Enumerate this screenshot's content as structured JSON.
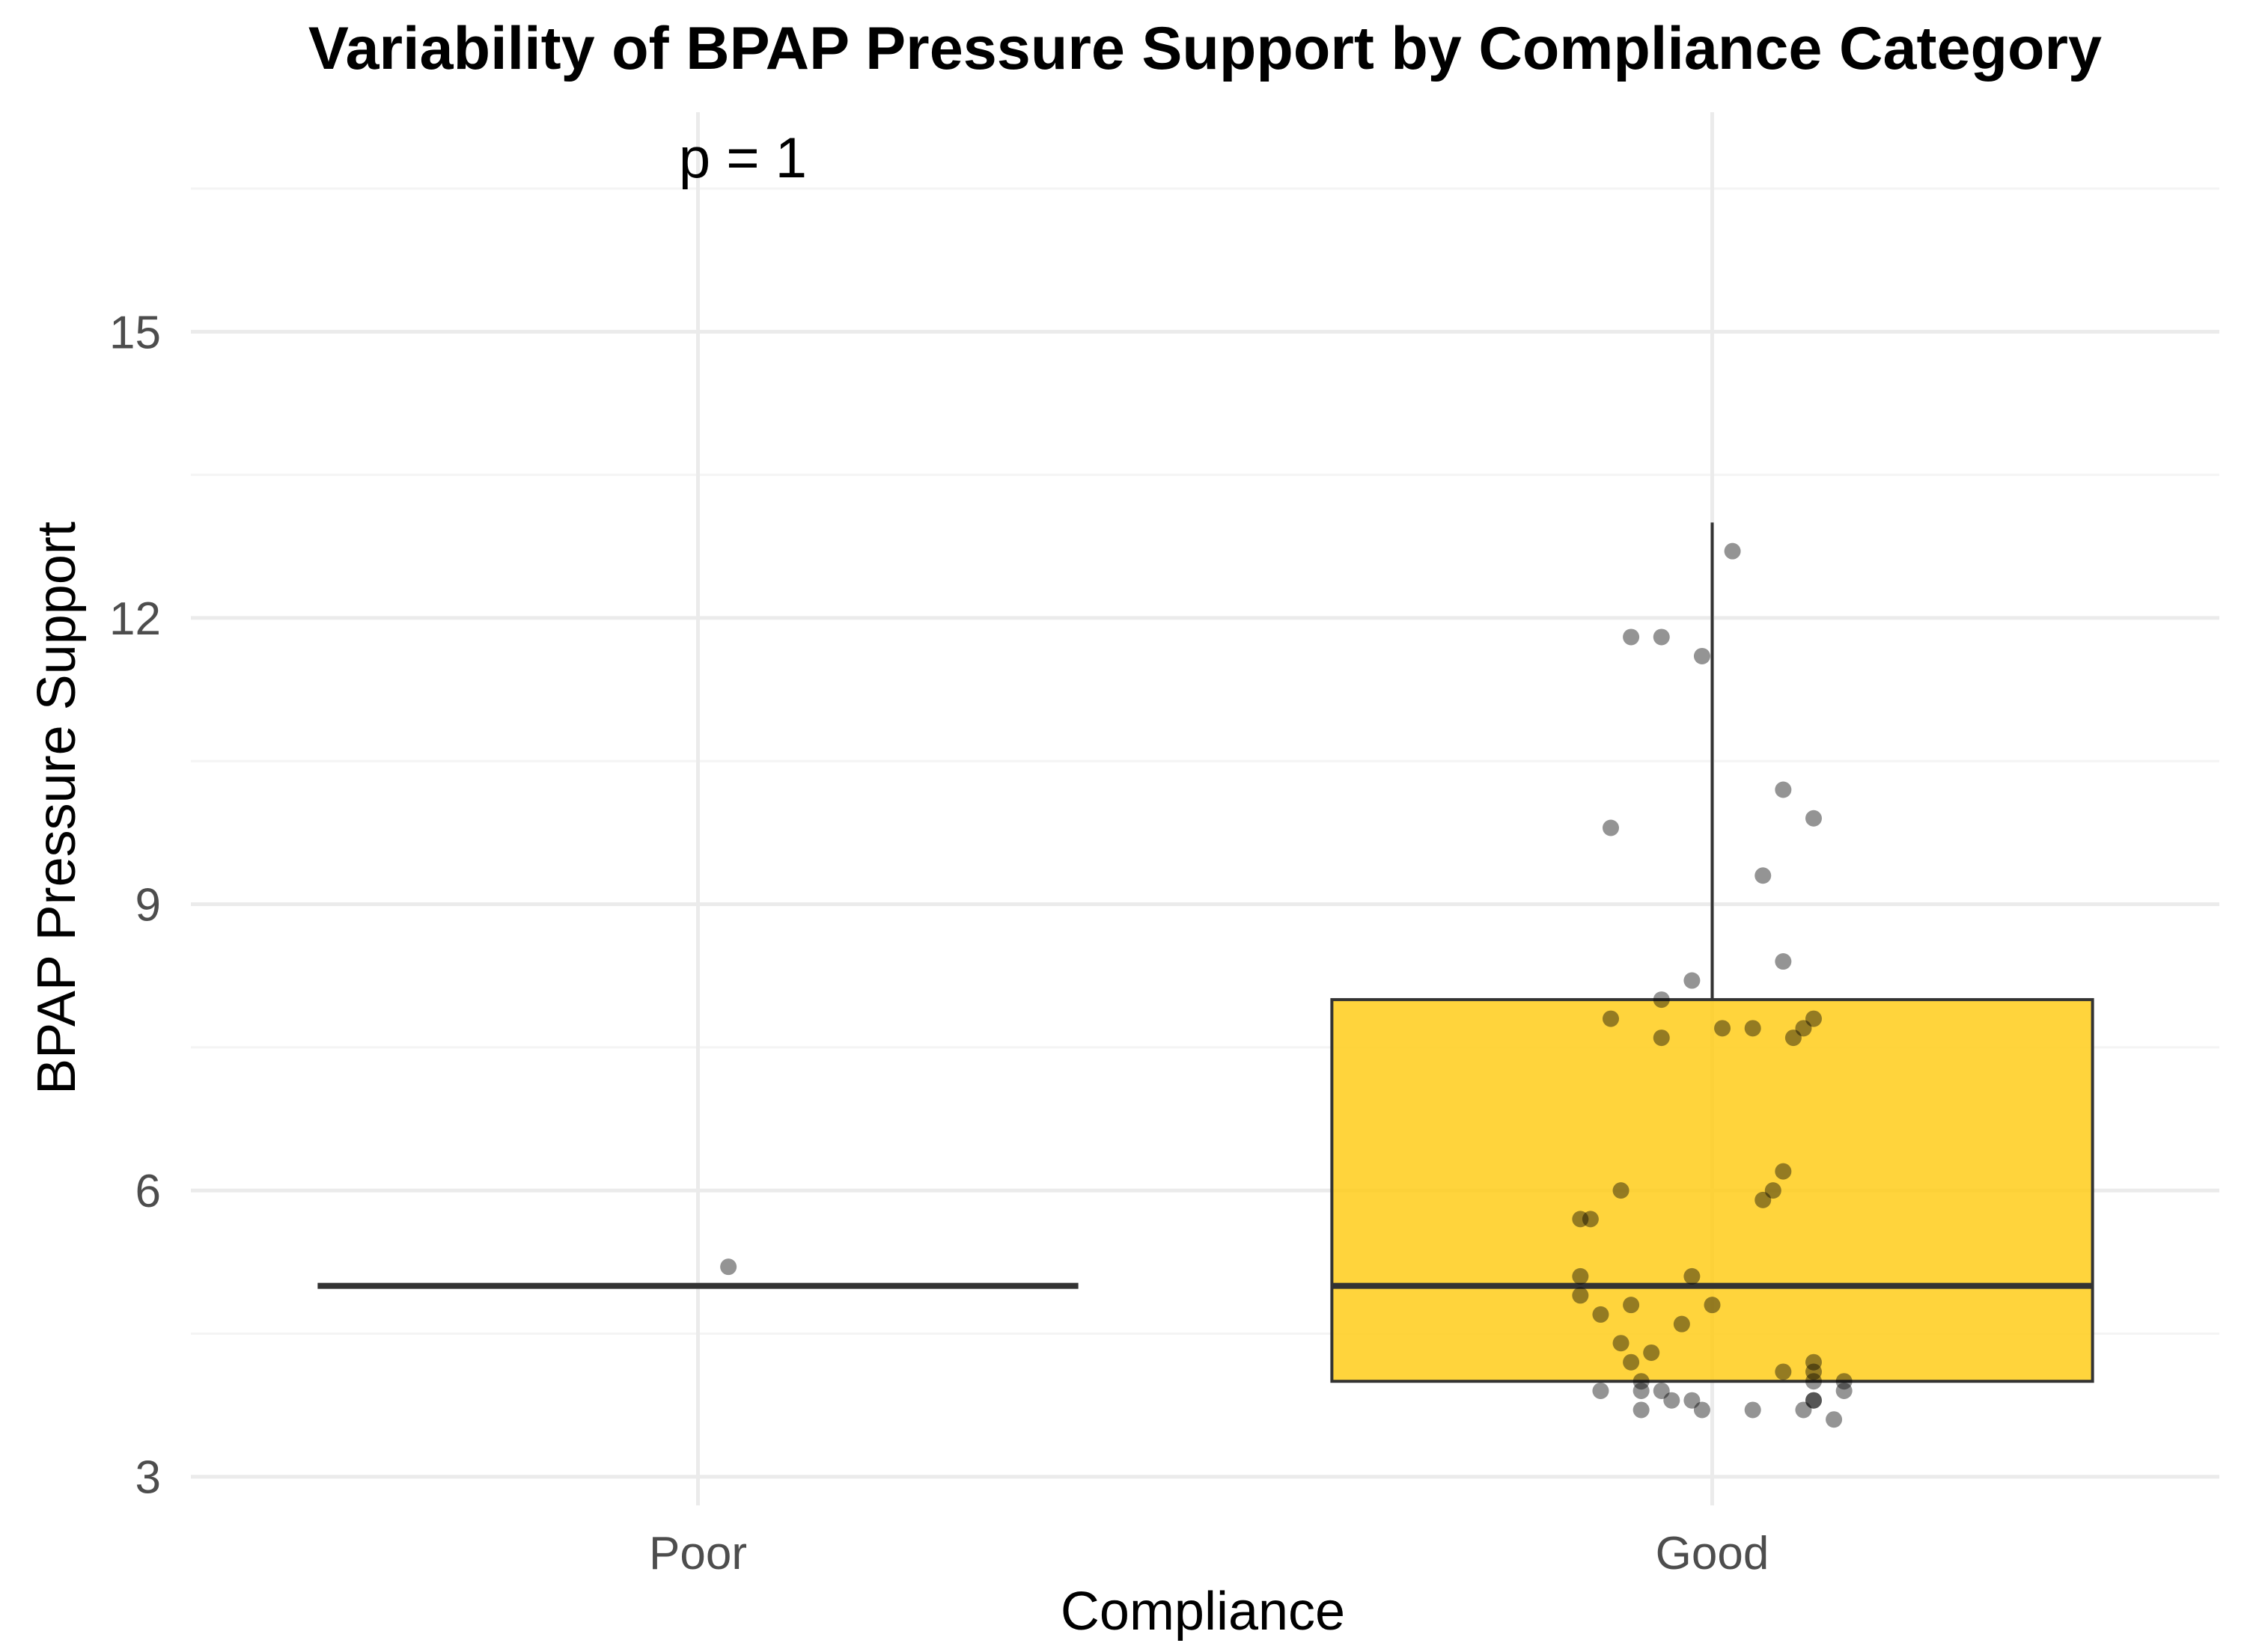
{
  "chart_data": {
    "type": "box",
    "title": "Variability of BPAP Pressure Support by Compliance Category",
    "xlabel": "Compliance",
    "ylabel": "BPAP Pressure Support",
    "categories": [
      "Poor",
      "Good"
    ],
    "ylim": [
      2.7,
      17.3
    ],
    "yticks": [
      3,
      6,
      9,
      12,
      15
    ],
    "grid": true,
    "annotation": {
      "text": "p = 1",
      "x_category": "Poor"
    },
    "box_fill": "#FFCC1A",
    "boxes": [
      {
        "category": "Poor",
        "min": 5,
        "q1": 5,
        "median": 5,
        "q3": 5,
        "max": 5,
        "fill": "#FFCC1A"
      },
      {
        "category": "Good",
        "min": 4,
        "q1": 4,
        "median": 5,
        "q3": 8,
        "max": 13,
        "fill": "#FFCC1A"
      }
    ],
    "points": [
      {
        "category": "Poor",
        "jitter": 0.03,
        "value": 5.2
      },
      {
        "category": "Good",
        "jitter": 0.02,
        "value": 12.7
      },
      {
        "category": "Good",
        "jitter": -0.08,
        "value": 11.8
      },
      {
        "category": "Good",
        "jitter": -0.05,
        "value": 11.8
      },
      {
        "category": "Good",
        "jitter": -0.01,
        "value": 11.6
      },
      {
        "category": "Good",
        "jitter": 0.07,
        "value": 10.2
      },
      {
        "category": "Good",
        "jitter": 0.1,
        "value": 9.9
      },
      {
        "category": "Good",
        "jitter": -0.1,
        "value": 9.8
      },
      {
        "category": "Good",
        "jitter": 0.05,
        "value": 9.3
      },
      {
        "category": "Good",
        "jitter": 0.07,
        "value": 8.4
      },
      {
        "category": "Good",
        "jitter": -0.02,
        "value": 8.2
      },
      {
        "category": "Good",
        "jitter": -0.05,
        "value": 8.0
      },
      {
        "category": "Good",
        "jitter": -0.1,
        "value": 7.8
      },
      {
        "category": "Good",
        "jitter": 0.1,
        "value": 7.8
      },
      {
        "category": "Good",
        "jitter": 0.01,
        "value": 7.7
      },
      {
        "category": "Good",
        "jitter": 0.04,
        "value": 7.7
      },
      {
        "category": "Good",
        "jitter": 0.09,
        "value": 7.7
      },
      {
        "category": "Good",
        "jitter": -0.05,
        "value": 7.6
      },
      {
        "category": "Good",
        "jitter": 0.08,
        "value": 7.6
      },
      {
        "category": "Good",
        "jitter": 0.07,
        "value": 6.2
      },
      {
        "category": "Good",
        "jitter": -0.09,
        "value": 6.0
      },
      {
        "category": "Good",
        "jitter": 0.06,
        "value": 6.0
      },
      {
        "category": "Good",
        "jitter": 0.05,
        "value": 5.9
      },
      {
        "category": "Good",
        "jitter": -0.13,
        "value": 5.7
      },
      {
        "category": "Good",
        "jitter": -0.12,
        "value": 5.7
      },
      {
        "category": "Good",
        "jitter": -0.13,
        "value": 5.1
      },
      {
        "category": "Good",
        "jitter": -0.02,
        "value": 5.1
      },
      {
        "category": "Good",
        "jitter": -0.13,
        "value": 4.9
      },
      {
        "category": "Good",
        "jitter": -0.08,
        "value": 4.8
      },
      {
        "category": "Good",
        "jitter": 0.0,
        "value": 4.8
      },
      {
        "category": "Good",
        "jitter": -0.11,
        "value": 4.7
      },
      {
        "category": "Good",
        "jitter": -0.03,
        "value": 4.6
      },
      {
        "category": "Good",
        "jitter": -0.09,
        "value": 4.4
      },
      {
        "category": "Good",
        "jitter": -0.06,
        "value": 4.3
      },
      {
        "category": "Good",
        "jitter": -0.08,
        "value": 4.2
      },
      {
        "category": "Good",
        "jitter": 0.1,
        "value": 4.2
      },
      {
        "category": "Good",
        "jitter": 0.1,
        "value": 4.1
      },
      {
        "category": "Good",
        "jitter": 0.07,
        "value": 4.1
      },
      {
        "category": "Good",
        "jitter": 0.1,
        "value": 4.0
      },
      {
        "category": "Good",
        "jitter": -0.07,
        "value": 4.0
      },
      {
        "category": "Good",
        "jitter": 0.13,
        "value": 4.0
      },
      {
        "category": "Good",
        "jitter": 0.13,
        "value": 3.9
      },
      {
        "category": "Good",
        "jitter": -0.11,
        "value": 3.9
      },
      {
        "category": "Good",
        "jitter": -0.05,
        "value": 3.9
      },
      {
        "category": "Good",
        "jitter": -0.07,
        "value": 3.9
      },
      {
        "category": "Good",
        "jitter": -0.04,
        "value": 3.8
      },
      {
        "category": "Good",
        "jitter": -0.02,
        "value": 3.8
      },
      {
        "category": "Good",
        "jitter": 0.1,
        "value": 3.8
      },
      {
        "category": "Good",
        "jitter": 0.1,
        "value": 3.8
      },
      {
        "category": "Good",
        "jitter": -0.01,
        "value": 3.7
      },
      {
        "category": "Good",
        "jitter": 0.04,
        "value": 3.7
      },
      {
        "category": "Good",
        "jitter": 0.09,
        "value": 3.7
      },
      {
        "category": "Good",
        "jitter": -0.07,
        "value": 3.7
      },
      {
        "category": "Good",
        "jitter": 0.12,
        "value": 3.6
      }
    ]
  }
}
